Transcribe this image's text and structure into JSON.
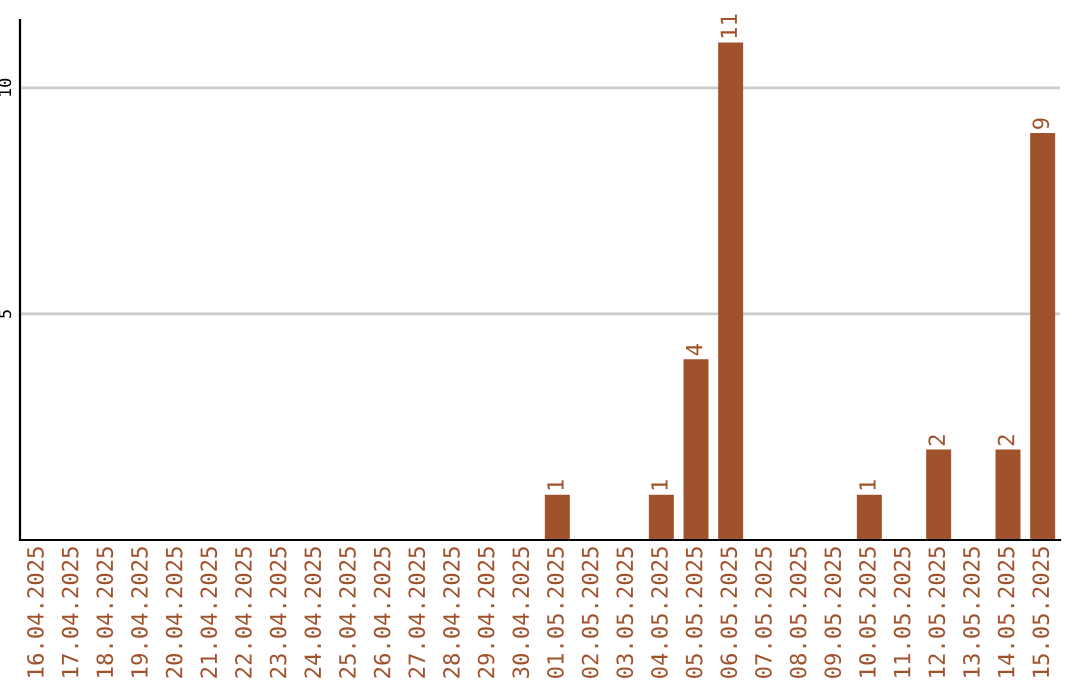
{
  "chart_data": {
    "type": "bar",
    "categories": [
      "16.04.2025",
      "17.04.2025",
      "18.04.2025",
      "19.04.2025",
      "20.04.2025",
      "21.04.2025",
      "22.04.2025",
      "23.04.2025",
      "24.04.2025",
      "25.04.2025",
      "26.04.2025",
      "27.04.2025",
      "28.04.2025",
      "29.04.2025",
      "30.04.2025",
      "01.05.2025",
      "02.05.2025",
      "03.05.2025",
      "04.05.2025",
      "05.05.2025",
      "06.05.2025",
      "07.05.2025",
      "08.05.2025",
      "09.05.2025",
      "10.05.2025",
      "11.05.2025",
      "12.05.2025",
      "13.05.2025",
      "14.05.2025",
      "15.05.2025"
    ],
    "values": [
      0,
      0,
      0,
      0,
      0,
      0,
      0,
      0,
      0,
      0,
      0,
      0,
      0,
      0,
      0,
      1,
      0,
      0,
      1,
      4,
      11,
      0,
      0,
      0,
      1,
      0,
      2,
      0,
      2,
      9
    ],
    "value_labels": [
      null,
      null,
      null,
      null,
      null,
      null,
      null,
      null,
      null,
      null,
      null,
      null,
      null,
      null,
      null,
      "1",
      null,
      null,
      "1",
      "4",
      "11",
      null,
      null,
      null,
      "1",
      null,
      "2",
      null,
      "2",
      "9"
    ],
    "color": "#a0522d",
    "ylim": [
      0,
      11.5
    ],
    "yticks": [
      5,
      10
    ],
    "grid": "y"
  }
}
